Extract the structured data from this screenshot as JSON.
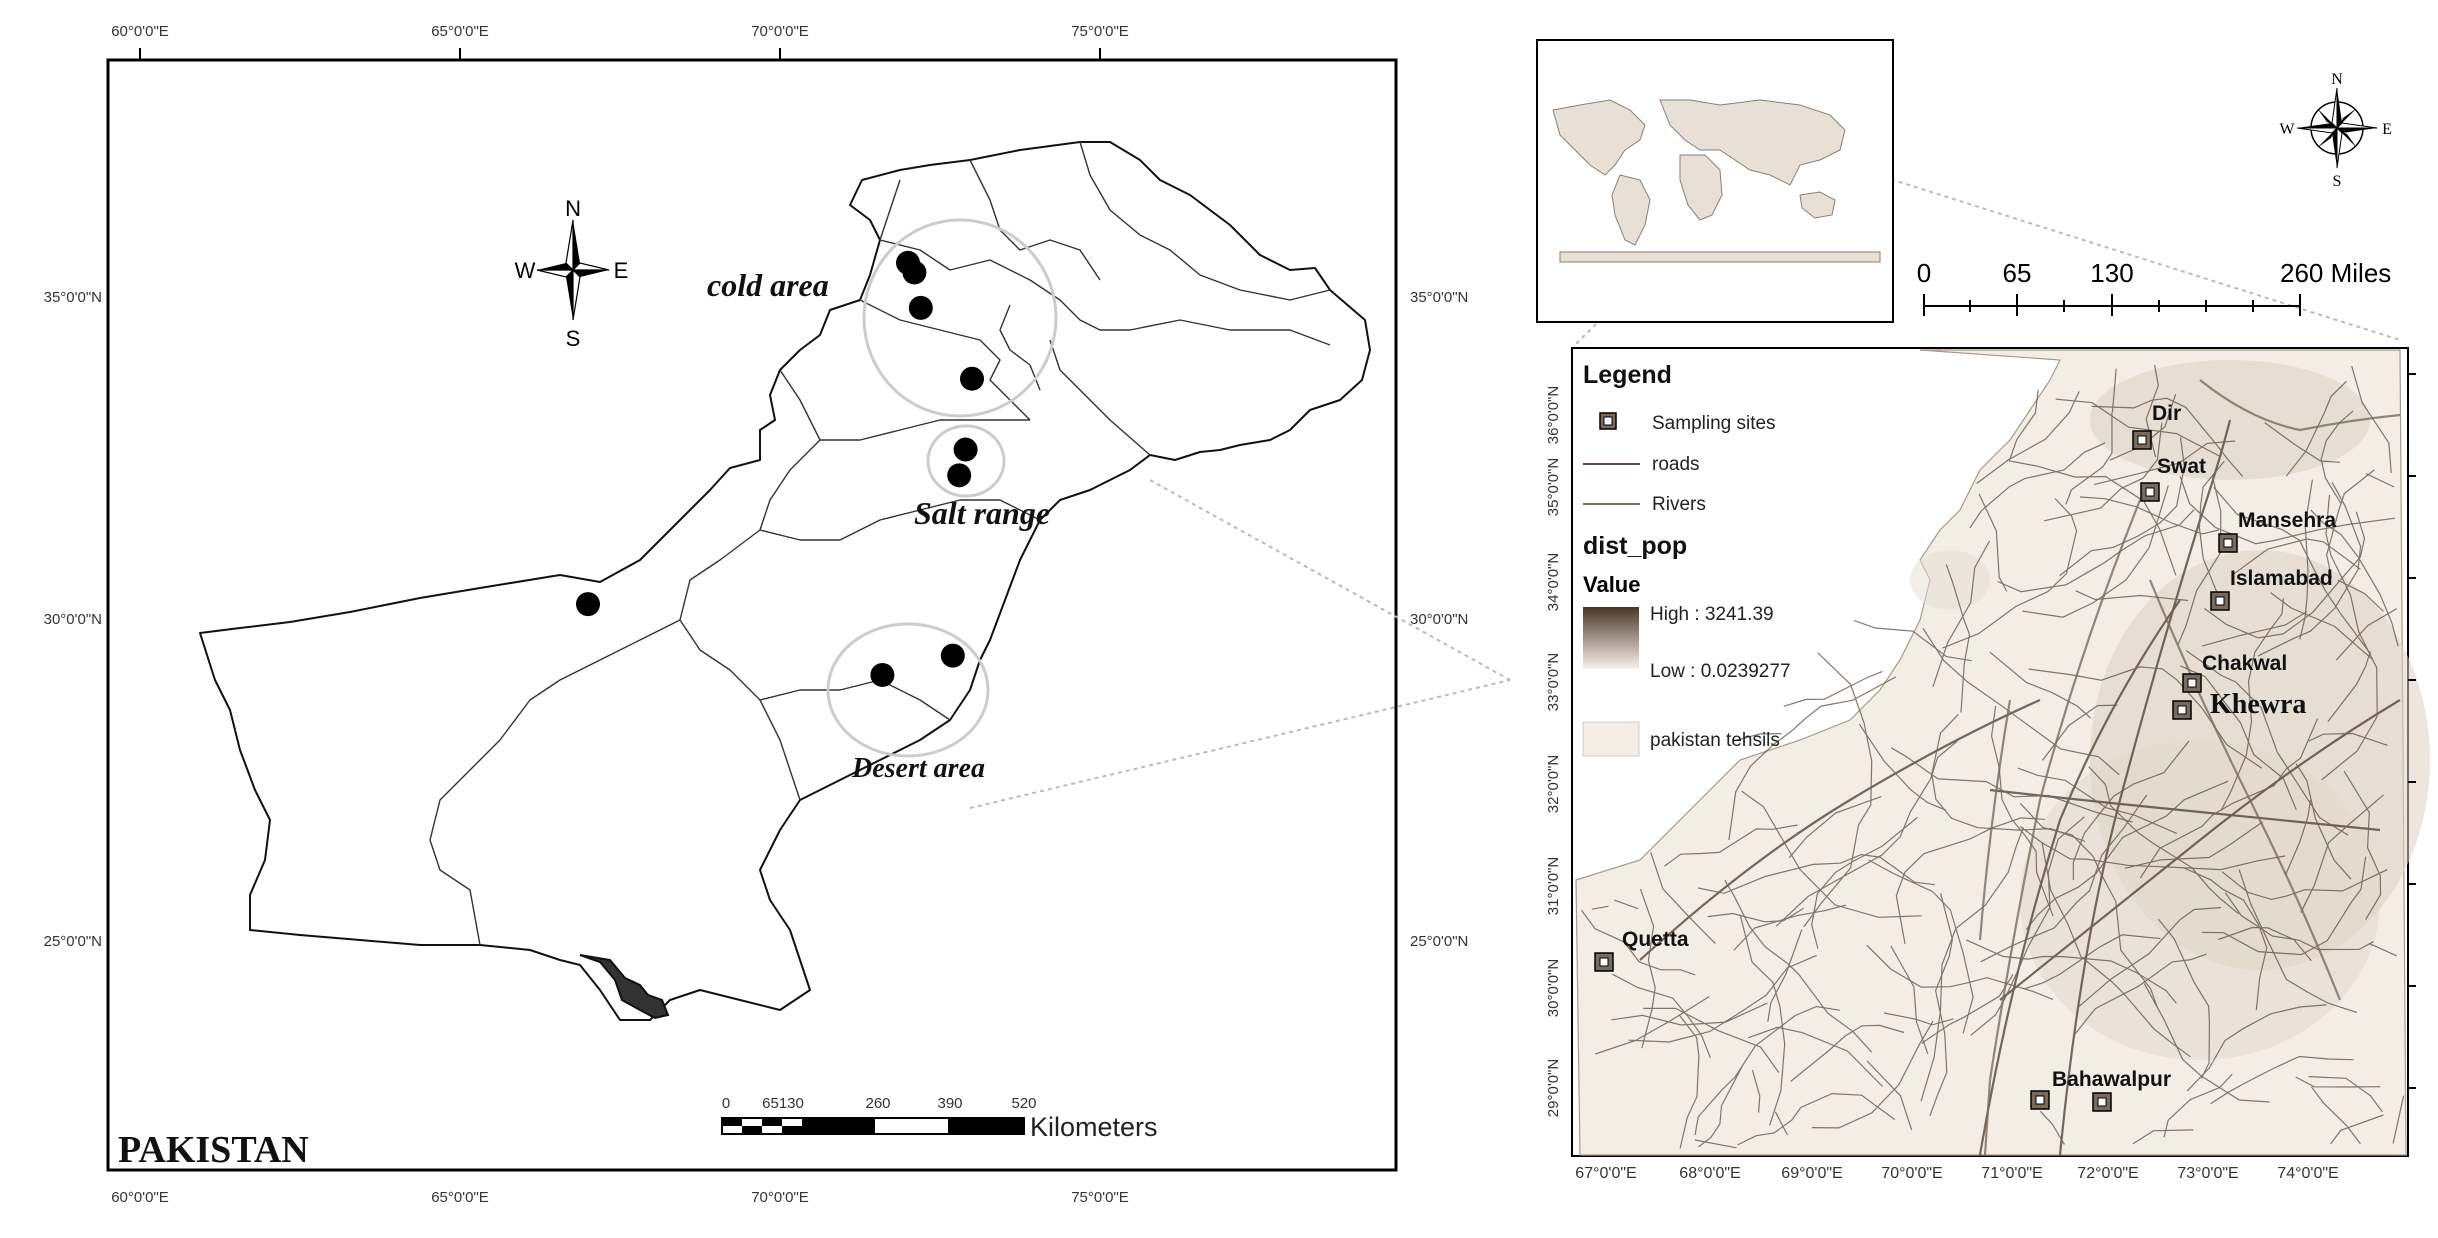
{
  "main_map": {
    "country_label": "PAKISTAN",
    "lon_ticks": [
      "60°0'0\"E",
      "65°0'0\"E",
      "70°0'0\"E",
      "75°0'0\"E"
    ],
    "lat_ticks": [
      "35°0'0\"N",
      "30°0'0\"N",
      "25°0'0\"N"
    ],
    "north_arrow": {
      "n": "N",
      "s": "S",
      "e": "E",
      "w": "W"
    },
    "regions": [
      {
        "label": "cold area"
      },
      {
        "label": "Salt range"
      },
      {
        "label": "Desert area"
      }
    ],
    "sampling_points": [
      {
        "lon": 72.0,
        "lat": 35.5
      },
      {
        "lon": 72.1,
        "lat": 35.35
      },
      {
        "lon": 72.2,
        "lat": 34.8
      },
      {
        "lon": 73.0,
        "lat": 33.7
      },
      {
        "lon": 72.9,
        "lat": 32.6
      },
      {
        "lon": 72.8,
        "lat": 32.2
      },
      {
        "lon": 67.0,
        "lat": 30.2
      },
      {
        "lon": 71.6,
        "lat": 29.1
      },
      {
        "lon": 72.7,
        "lat": 29.4
      }
    ],
    "scale_bar": {
      "ticks": [
        "0",
        "65130",
        "260",
        "390",
        "520"
      ],
      "unit": "Kilometers"
    }
  },
  "inset_world": {
    "scale_ticks": [
      "0",
      "65",
      "130",
      "260 Miles"
    ],
    "north_arrow": {
      "n": "N",
      "s": "S",
      "e": "E",
      "w": "W"
    }
  },
  "detail_map": {
    "lat_ticks": [
      "36°0'0\"N",
      "35°0'0\"N",
      "34°0'0\"N",
      "33°0'0\"N",
      "32°0'0\"N",
      "31°0'0\"N",
      "30°0'0\"N",
      "29°0'0\"N"
    ],
    "lon_ticks": [
      "67°0'0\"E",
      "68°0'0\"E",
      "69°0'0\"E",
      "70°0'0\"E",
      "71°0'0\"E",
      "72°0'0\"E",
      "73°0'0\"E",
      "74°0'0\"E"
    ],
    "legend": {
      "title": "Legend",
      "sampling_sites": "Sampling sites",
      "roads": "roads",
      "rivers": "Rivers",
      "layer_name": "dist_pop",
      "value_label": "Value",
      "high": "High : 3241.39",
      "low": "Low : 0.0239277",
      "tehsils": "pakistan tehsils"
    },
    "sites": [
      {
        "label": "Dir"
      },
      {
        "label": "Swat"
      },
      {
        "label": "Mansehra"
      },
      {
        "label": "Islamabad"
      },
      {
        "label": "Chakwal"
      },
      {
        "label": "Khewra"
      },
      {
        "label": "Quetta"
      },
      {
        "label": "Bahawalpur"
      },
      {
        "label": ""
      }
    ]
  }
}
